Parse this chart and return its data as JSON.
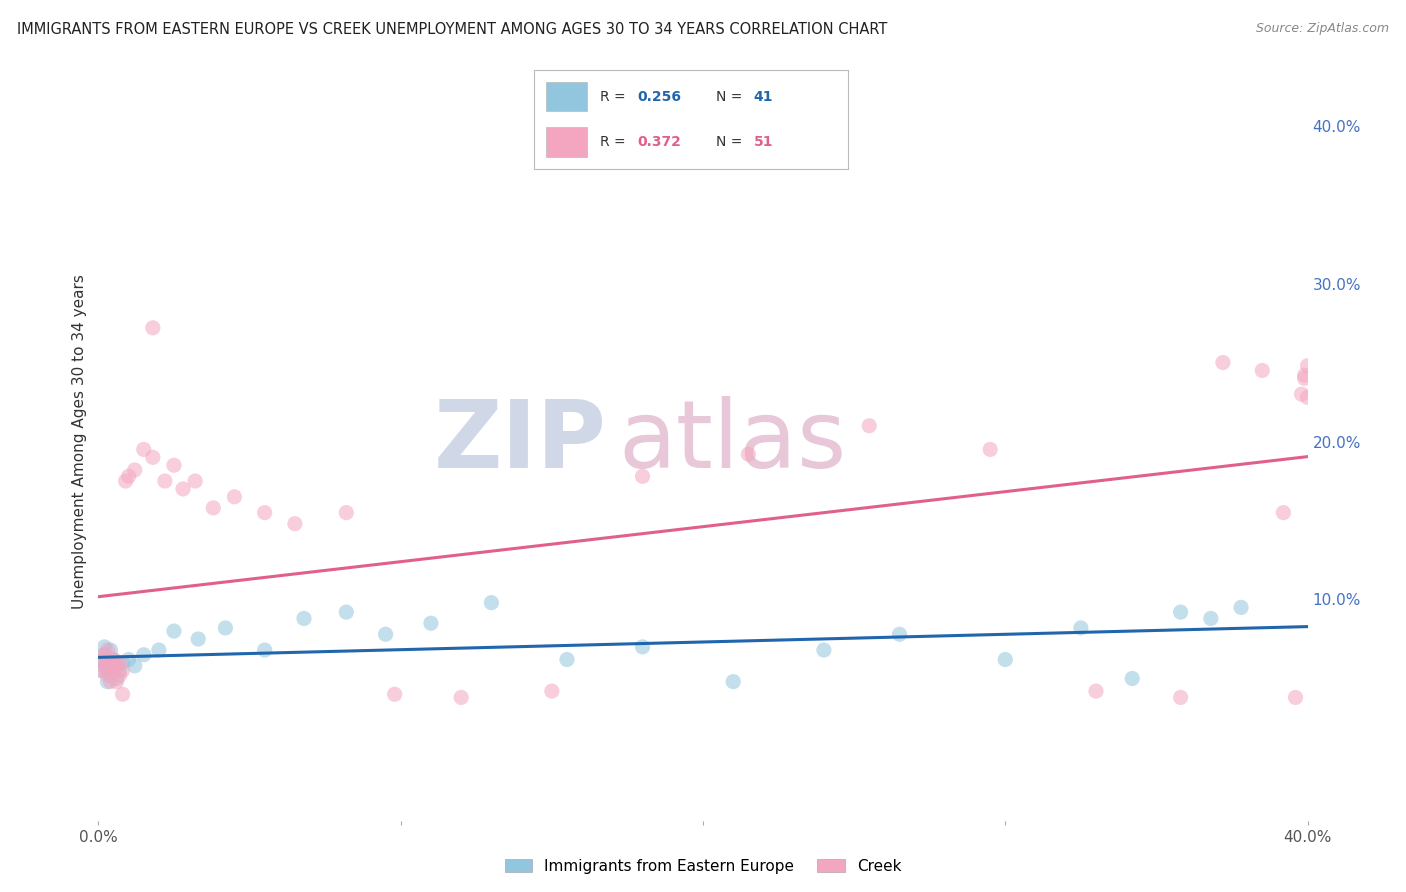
{
  "title": "IMMIGRANTS FROM EASTERN EUROPE VS CREEK UNEMPLOYMENT AMONG AGES 30 TO 34 YEARS CORRELATION CHART",
  "source": "Source: ZipAtlas.com",
  "ylabel": "Unemployment Among Ages 30 to 34 years",
  "xlim": [
    0.0,
    0.4
  ],
  "ylim": [
    -0.04,
    0.44
  ],
  "legend_blue_r": "0.256",
  "legend_blue_n": "41",
  "legend_pink_r": "0.372",
  "legend_pink_n": "51",
  "legend_blue_label": "Immigrants from Eastern Europe",
  "legend_pink_label": "Creek",
  "blue_color": "#92c5de",
  "pink_color": "#f4a6c0",
  "trendline_blue_color": "#2166ac",
  "trendline_pink_color": "#e0608a",
  "right_axis_color": "#4472c4",
  "watermark_color": "#d0d8e8",
  "watermark_pink_color": "#e8c8d8",
  "dot_size": 120,
  "dot_alpha": 0.55,
  "background_color": "#ffffff",
  "grid_color": "#cccccc",
  "title_color": "#222222",
  "blue_scatter_x": [
    0.001,
    0.001,
    0.002,
    0.002,
    0.002,
    0.003,
    0.003,
    0.003,
    0.003,
    0.004,
    0.004,
    0.004,
    0.005,
    0.005,
    0.006,
    0.007,
    0.008,
    0.009,
    0.01,
    0.012,
    0.015,
    0.018,
    0.025,
    0.03,
    0.038,
    0.045,
    0.06,
    0.075,
    0.09,
    0.105,
    0.12,
    0.145,
    0.165,
    0.2,
    0.24,
    0.28,
    0.31,
    0.33,
    0.345,
    0.36,
    0.375
  ],
  "blue_scatter_y": [
    0.055,
    0.062,
    0.05,
    0.06,
    0.068,
    0.052,
    0.058,
    0.062,
    0.07,
    0.055,
    0.062,
    0.045,
    0.058,
    0.065,
    0.055,
    0.048,
    0.06,
    0.055,
    0.065,
    0.062,
    0.068,
    0.058,
    0.085,
    0.075,
    0.07,
    0.08,
    0.068,
    0.09,
    0.085,
    0.1,
    0.06,
    0.075,
    0.058,
    0.068,
    0.08,
    0.048,
    0.065,
    0.082,
    0.095,
    0.088,
    0.092
  ],
  "pink_scatter_x": [
    0.001,
    0.001,
    0.002,
    0.002,
    0.002,
    0.003,
    0.003,
    0.003,
    0.004,
    0.004,
    0.004,
    0.005,
    0.005,
    0.005,
    0.006,
    0.006,
    0.007,
    0.007,
    0.008,
    0.008,
    0.009,
    0.01,
    0.011,
    0.012,
    0.013,
    0.015,
    0.017,
    0.02,
    0.025,
    0.032,
    0.04,
    0.05,
    0.065,
    0.08,
    0.1,
    0.12,
    0.15,
    0.185,
    0.22,
    0.265,
    0.3,
    0.33,
    0.355,
    0.375,
    0.39,
    0.395,
    0.398,
    0.4,
    0.4,
    0.4,
    0.4
  ],
  "pink_scatter_y": [
    0.055,
    0.062,
    0.052,
    0.06,
    0.068,
    0.05,
    0.058,
    0.048,
    0.052,
    0.06,
    0.068,
    0.045,
    0.055,
    0.065,
    0.05,
    0.06,
    0.055,
    0.068,
    0.052,
    0.062,
    0.168,
    0.172,
    0.178,
    0.182,
    0.185,
    0.192,
    0.195,
    0.2,
    0.195,
    0.185,
    0.178,
    0.172,
    0.155,
    0.148,
    0.158,
    0.162,
    0.17,
    0.178,
    0.21,
    0.195,
    0.155,
    0.045,
    0.04,
    0.035,
    0.25,
    0.245,
    0.04,
    0.23,
    0.238,
    0.24,
    0.242
  ]
}
